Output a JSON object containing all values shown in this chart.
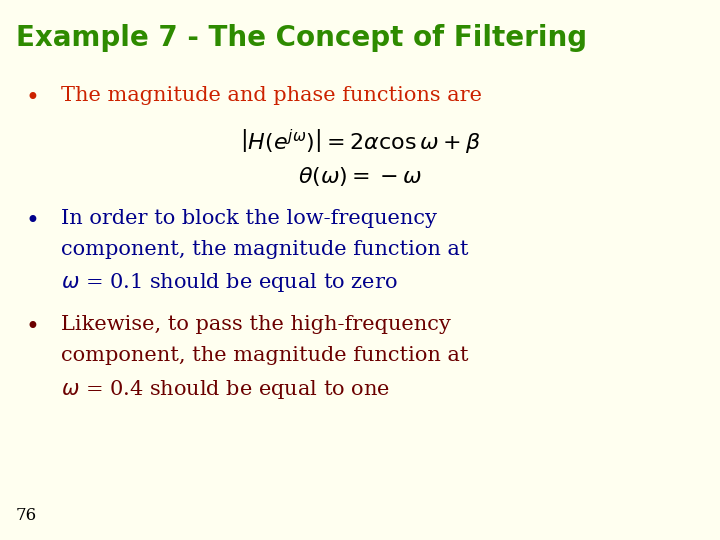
{
  "background_color": "#FFFFF0",
  "title": "Example 7 - The Concept of Filtering",
  "title_color": "#2E8B00",
  "title_fontsize": 20,
  "bullet1_text": "The magnitude and phase functions are",
  "bullet1_color": "#CC2200",
  "bullet1_fontsize": 15,
  "formula_color": "#000000",
  "formula_fontsize": 15,
  "bullet2_color": "#00008B",
  "bullet2_fontsize": 15,
  "bullet2_line1": "In order to block the low-frequency",
  "bullet2_line2": "component, the magnitude function at",
  "bullet2_line3": "= 0.1 should be equal to zero",
  "bullet3_color": "#6B0000",
  "bullet3_fontsize": 15,
  "bullet3_line1": "Likewise, to pass the high-frequency",
  "bullet3_line2": "component, the magnitude function at",
  "bullet3_line3": "= 0.4 should be equal to one",
  "page_number": "76",
  "page_number_color": "#000000",
  "page_number_fontsize": 12
}
